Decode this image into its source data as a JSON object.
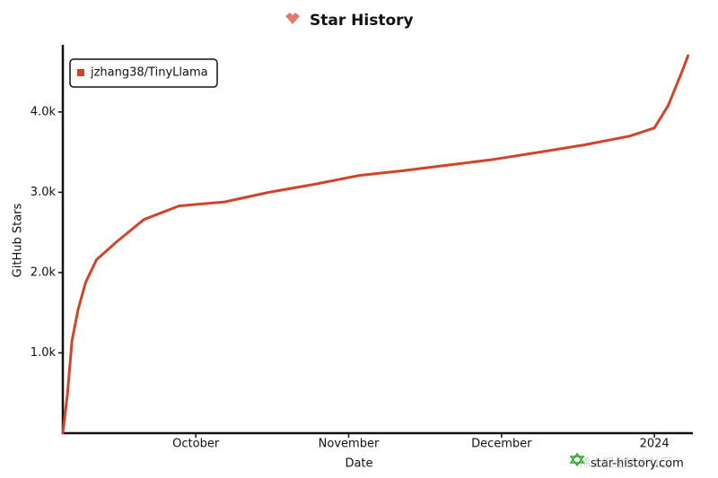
{
  "chart_data": {
    "type": "line",
    "title": "Star History",
    "xlabel": "Date",
    "ylabel": "GitHub Stars",
    "x": [
      0.13,
      0.16,
      0.19,
      0.23,
      0.28,
      0.35,
      0.48,
      0.66,
      0.89,
      1.19,
      1.48,
      1.78,
      2.07,
      2.36,
      2.66,
      2.95,
      3.25,
      3.54,
      3.84,
      4.0,
      4.09,
      4.18,
      4.22
    ],
    "series": [
      {
        "name": "jzhang38/TinyLlama",
        "color": "#d0452a",
        "values": [
          0,
          480,
          1150,
          1540,
          1880,
          2160,
          2380,
          2660,
          2830,
          2880,
          3000,
          3100,
          3210,
          3270,
          3340,
          3410,
          3500,
          3590,
          3700,
          3800,
          4080,
          4500,
          4700
        ]
      }
    ],
    "xlim": [
      0.13,
      4.24
    ],
    "xticks": [
      {
        "value": 1,
        "label": "October"
      },
      {
        "value": 2,
        "label": "November"
      },
      {
        "value": 3,
        "label": "December"
      },
      {
        "value": 4,
        "label": "2024"
      }
    ],
    "ylim": [
      0,
      4780
    ],
    "yticks": [
      {
        "value": 1000,
        "label": "1.0k"
      },
      {
        "value": 2000,
        "label": "2.0k"
      },
      {
        "value": 3000,
        "label": "3.0k"
      },
      {
        "value": 4000,
        "label": "4.0k"
      }
    ],
    "grid": false,
    "legend": "upper left",
    "watermark": "star-history.com",
    "overlay_watermark": "稀土掘金技术社区"
  }
}
